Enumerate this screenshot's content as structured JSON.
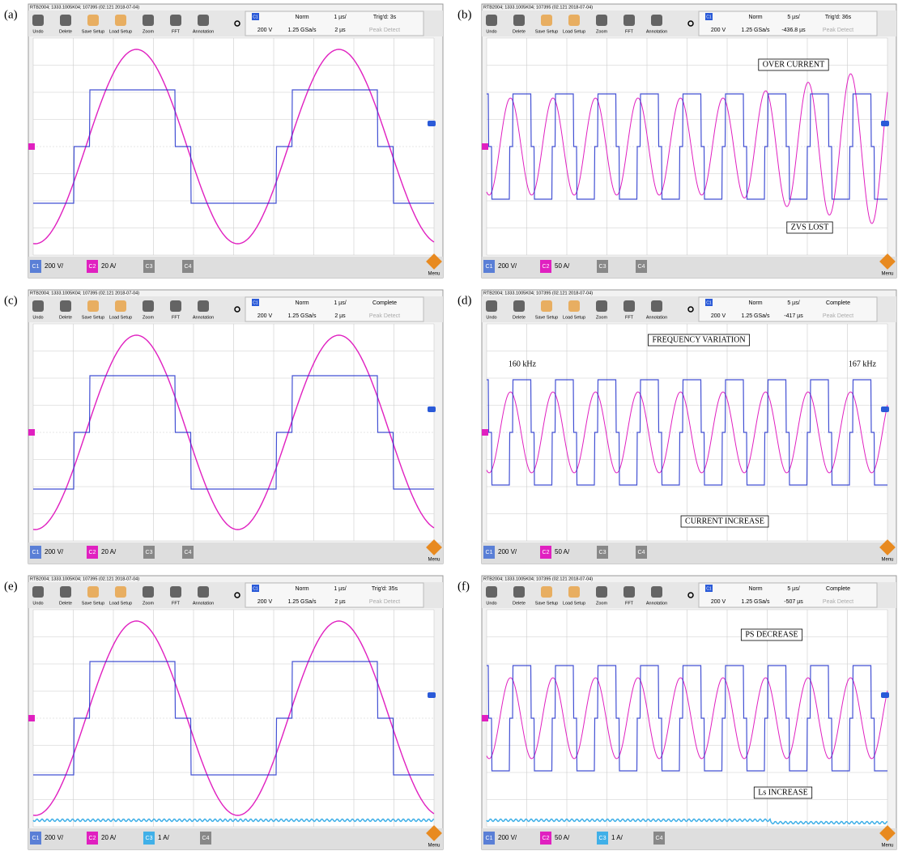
{
  "title_bar": "RTB2004; 1333.1005K04; 107395 (02.121 2018-07-04)",
  "toolbar": [
    "Undo",
    "Delete",
    "Save Setup",
    "Load Setup",
    "Zoom",
    "FFT",
    "Annotation"
  ],
  "menu": "Menu",
  "panels": [
    {
      "label": "(a)",
      "channel": "C1",
      "mode": "Norm",
      "timebase": "1 µs/",
      "status": "Trig'd: 3s",
      "volts": "200 V",
      "rate": "1.25 GSa/s",
      "offset": "2 µs",
      "acq": "Peak Detect",
      "channels": [
        {
          "name": "C1",
          "scale": "200 V/"
        },
        {
          "name": "C2",
          "scale": "20 A/"
        },
        {
          "name": "C3"
        },
        {
          "name": "C4"
        }
      ],
      "annotations": []
    },
    {
      "label": "(b)",
      "channel": "C1",
      "mode": "Norm",
      "timebase": "5 µs/",
      "status": "Trig'd: 36s",
      "volts": "200 V",
      "rate": "1.25 GSa/s",
      "offset": "-436.8 µs",
      "acq": "Peak Detect",
      "channels": [
        {
          "name": "C1",
          "scale": "200 V/"
        },
        {
          "name": "C2",
          "scale": "50 A/"
        },
        {
          "name": "C3"
        },
        {
          "name": "C4"
        }
      ],
      "annotations": [
        "OVER CURRENT",
        "ZVS LOST"
      ]
    },
    {
      "label": "(c)",
      "channel": "C1",
      "mode": "Norm",
      "timebase": "1 µs/",
      "status": "Complete",
      "volts": "200 V",
      "rate": "1.25 GSa/s",
      "offset": "2 µs",
      "acq": "Peak Detect",
      "channels": [
        {
          "name": "C1",
          "scale": "200 V/"
        },
        {
          "name": "C2",
          "scale": "20 A/"
        },
        {
          "name": "C3"
        },
        {
          "name": "C4"
        }
      ],
      "annotations": []
    },
    {
      "label": "(d)",
      "channel": "C1",
      "mode": "Norm",
      "timebase": "5 µs/",
      "status": "Complete",
      "volts": "200 V",
      "rate": "1.25 GSa/s",
      "offset": "-417 µs",
      "acq": "Peak Detect",
      "channels": [
        {
          "name": "C1",
          "scale": "200 V/"
        },
        {
          "name": "C2",
          "scale": "50 A/"
        },
        {
          "name": "C3"
        },
        {
          "name": "C4"
        }
      ],
      "annotations": [
        "FREQUENCY VARIATION",
        "160 kHz",
        "167 kHz",
        "CURRENT INCREASE"
      ]
    },
    {
      "label": "(e)",
      "channel": "C1",
      "mode": "Norm",
      "timebase": "1 µs/",
      "status": "Trig'd: 35s",
      "volts": "200 V",
      "rate": "1.25 GSa/s",
      "offset": "2 µs",
      "acq": "Peak Detect",
      "channels": [
        {
          "name": "C1",
          "scale": "200 V/"
        },
        {
          "name": "C2",
          "scale": "20 A/"
        },
        {
          "name": "C3",
          "scale": "1 A/"
        },
        {
          "name": "C4"
        }
      ],
      "annotations": []
    },
    {
      "label": "(f)",
      "channel": "C1",
      "mode": "Norm",
      "timebase": "5 µs/",
      "status": "Complete",
      "volts": "200 V",
      "rate": "1.25 GSa/s",
      "offset": "-507 µs",
      "acq": "Peak Detect",
      "channels": [
        {
          "name": "C1",
          "scale": "200 V/"
        },
        {
          "name": "C2",
          "scale": "50 A/"
        },
        {
          "name": "C3",
          "scale": "1 A/"
        },
        {
          "name": "C4"
        }
      ],
      "annotations": [
        "PS DECREASE",
        "Ls INCREASE"
      ]
    }
  ]
}
